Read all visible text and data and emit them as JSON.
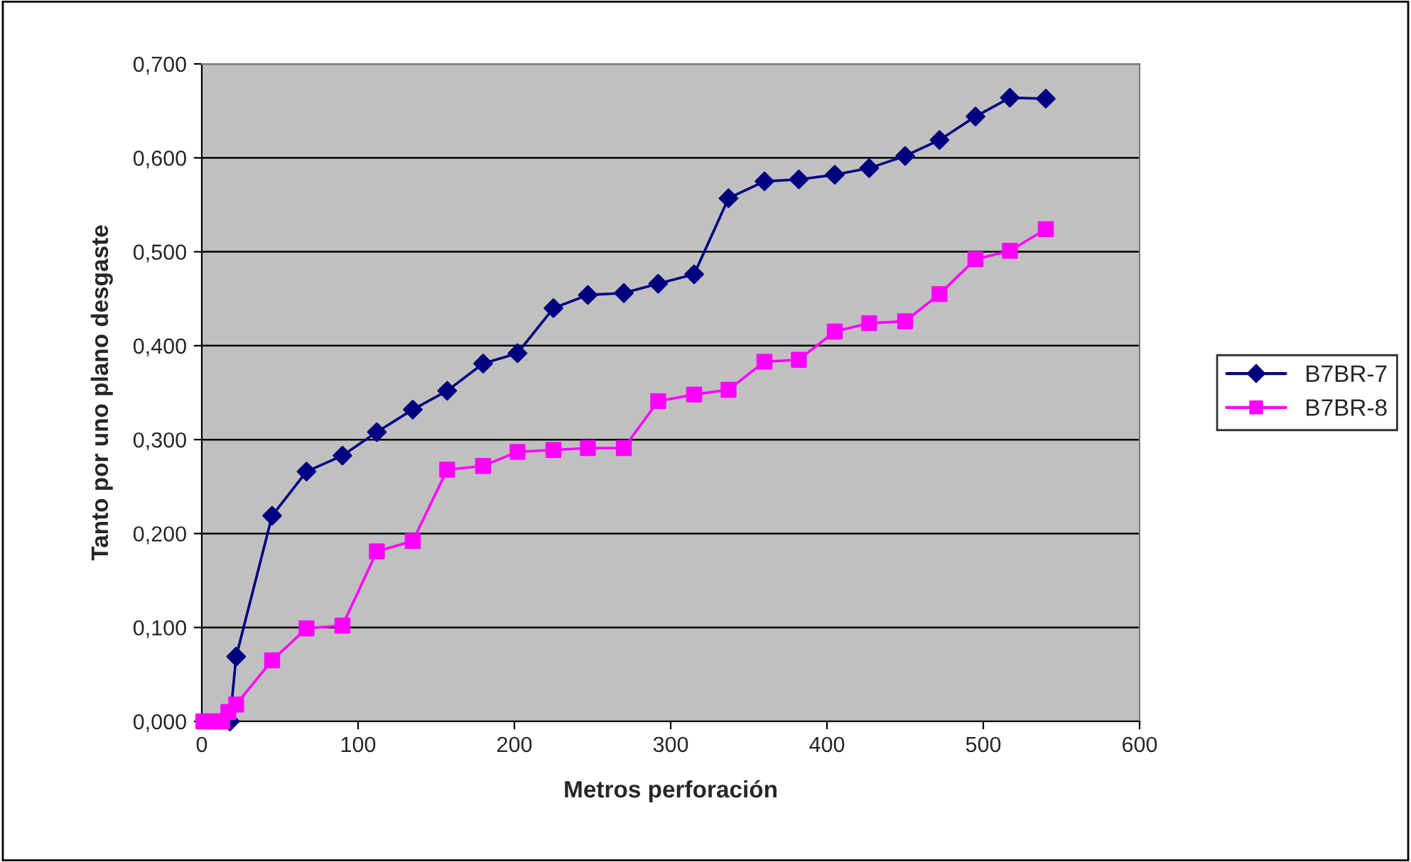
{
  "chart_data": {
    "type": "line",
    "xlabel": "Metros perforación",
    "ylabel": "Tanto por uno plano desgaste",
    "xlim": [
      0,
      600
    ],
    "xticks": [
      0,
      100,
      200,
      300,
      400,
      500,
      600
    ],
    "ylim": [
      0,
      0.7
    ],
    "yticks": [
      {
        "value": 0,
        "label": "0,000"
      },
      {
        "value": 0.1,
        "label": "0,100"
      },
      {
        "value": 0.2,
        "label": "0,200"
      },
      {
        "value": 0.3,
        "label": "0,300"
      },
      {
        "value": 0.4,
        "label": "0,400"
      },
      {
        "value": 0.5,
        "label": "0,500"
      },
      {
        "value": 0.6,
        "label": "0,600"
      },
      {
        "value": 0.7,
        "label": "0,700"
      }
    ],
    "grid": "y",
    "legend": "right",
    "series": [
      {
        "name": "B7BR-7",
        "color": "#000080",
        "marker": "diamond",
        "x": [
          18,
          22,
          45,
          67,
          90,
          112,
          135,
          157,
          180,
          202,
          225,
          247,
          270,
          292,
          315,
          337,
          360,
          382,
          405,
          427,
          450,
          472,
          495,
          517,
          540
        ],
        "values": [
          0,
          0.069,
          0.219,
          0.266,
          0.283,
          0.308,
          0.332,
          0.352,
          0.381,
          0.392,
          0.44,
          0.454,
          0.456,
          0.466,
          0.476,
          0.557,
          0.575,
          0.577,
          0.582,
          0.589,
          0.602,
          0.619,
          0.644,
          0.664,
          0.663
        ]
      },
      {
        "name": "B7BR-8",
        "color": "#ff00ff",
        "marker": "square",
        "x": [
          1,
          7,
          13,
          17,
          22,
          45,
          67,
          90,
          112,
          135,
          157,
          180,
          202,
          225,
          247,
          270,
          292,
          315,
          337,
          360,
          382,
          405,
          427,
          450,
          472,
          495,
          517,
          540
        ],
        "values": [
          0,
          0,
          0,
          0.01,
          0.018,
          0.065,
          0.099,
          0.102,
          0.181,
          0.192,
          0.268,
          0.272,
          0.287,
          0.289,
          0.291,
          0.291,
          0.341,
          0.348,
          0.353,
          0.383,
          0.385,
          0.415,
          0.424,
          0.426,
          0.455,
          0.492,
          0.501,
          0.524
        ]
      }
    ]
  }
}
